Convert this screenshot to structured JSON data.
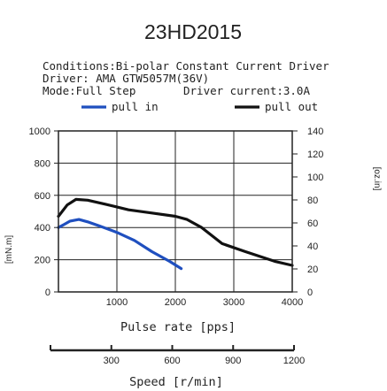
{
  "chart_data": {
    "type": "line",
    "title": "23HD2015",
    "conditions": {
      "line1": "Conditions:Bi-polar Constant Current Driver",
      "line2": "Driver: AMA GTW5057M(36V)",
      "mode": "Mode:Full Step",
      "current": "Driver current:3.0A"
    },
    "xlabel": "Pulse rate [pps]",
    "x2label": "Speed [r/min]",
    "ylabel_left": "[mN.m]",
    "ylabel_right": "[oz.in]",
    "xlim": [
      0,
      4000
    ],
    "ylim": [
      0,
      1000
    ],
    "y2lim": [
      0,
      140
    ],
    "x2lim": [
      0,
      1200
    ],
    "x_ticks": [
      0,
      1000,
      2000,
      3000,
      4000
    ],
    "x_tick_labels": [
      "1000",
      "2000",
      "3000",
      "4000"
    ],
    "y_ticks": [
      0,
      200,
      400,
      600,
      800,
      1000
    ],
    "y_tick_labels": [
      "0",
      "200",
      "400",
      "600",
      "800",
      "1000"
    ],
    "y2_ticks": [
      0,
      20,
      40,
      60,
      80,
      100,
      120,
      140
    ],
    "y2_tick_labels": [
      "0",
      "20",
      "40",
      "60",
      "80",
      "100",
      "120",
      "140"
    ],
    "x2_ticks": [
      0,
      300,
      600,
      900,
      1200
    ],
    "x2_tick_labels": [
      "300",
      "600",
      "900",
      "1200"
    ],
    "grid": true,
    "legend_position": "top",
    "series": [
      {
        "name": "pull in",
        "color": "#1f4fbf",
        "x": [
          0,
          100,
          200,
          350,
          500,
          700,
          1000,
          1300,
          1600,
          1900,
          2100
        ],
        "y": [
          400,
          420,
          440,
          450,
          435,
          410,
          370,
          320,
          250,
          190,
          145
        ]
      },
      {
        "name": "pull out",
        "color": "#111111",
        "x": [
          0,
          150,
          300,
          500,
          800,
          1200,
          1600,
          2000,
          2200,
          2450,
          2800,
          3200,
          3700,
          4000
        ],
        "y": [
          470,
          540,
          575,
          570,
          545,
          510,
          490,
          470,
          450,
          400,
          300,
          250,
          190,
          165
        ]
      }
    ]
  }
}
